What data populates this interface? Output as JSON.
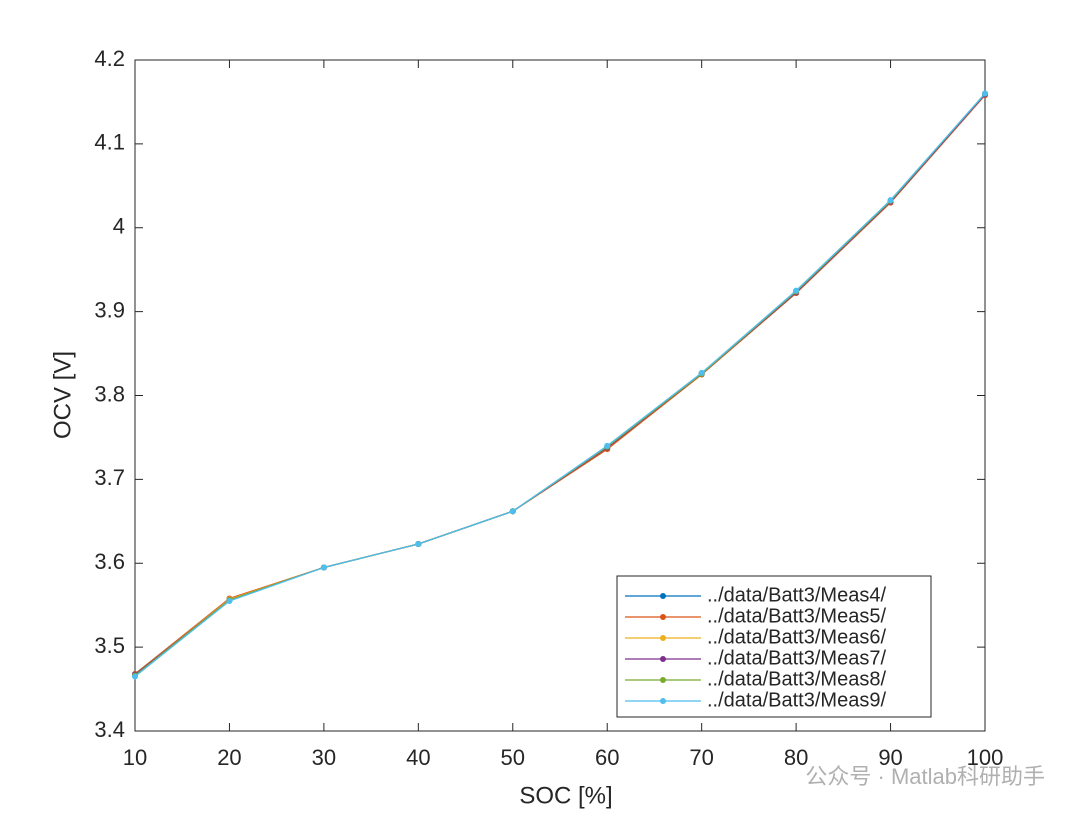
{
  "chart_data": {
    "type": "line",
    "xlabel": "SOC [%]",
    "ylabel": "OCV [V]",
    "x": [
      10,
      20,
      30,
      40,
      50,
      60,
      70,
      80,
      90,
      100
    ],
    "series": [
      {
        "name": "../data/Batt3/Meas4/",
        "color": "#0072BD",
        "values": [
          3.468,
          3.557,
          3.595,
          3.623,
          3.662,
          3.737,
          3.826,
          3.923,
          4.031,
          4.159
        ]
      },
      {
        "name": "../data/Batt3/Meas5/",
        "color": "#D95319",
        "values": [
          3.468,
          3.558,
          3.595,
          3.623,
          3.662,
          3.736,
          3.825,
          3.922,
          4.03,
          4.158
        ]
      },
      {
        "name": "../data/Batt3/Meas6/",
        "color": "#EDB120",
        "values": [
          3.467,
          3.557,
          3.595,
          3.623,
          3.662,
          3.738,
          3.826,
          3.923,
          4.031,
          4.159
        ]
      },
      {
        "name": "../data/Batt3/Meas7/",
        "color": "#7E2F8E",
        "values": [
          3.467,
          3.556,
          3.595,
          3.623,
          3.662,
          3.738,
          3.826,
          3.923,
          4.031,
          4.159
        ]
      },
      {
        "name": "../data/Batt3/Meas8/",
        "color": "#77AC30",
        "values": [
          3.466,
          3.556,
          3.595,
          3.623,
          3.662,
          3.739,
          3.826,
          3.924,
          4.032,
          4.16
        ]
      },
      {
        "name": "../data/Batt3/Meas9/",
        "color": "#4DBEEE",
        "values": [
          3.465,
          3.555,
          3.595,
          3.623,
          3.662,
          3.74,
          3.827,
          3.925,
          4.033,
          4.16
        ]
      }
    ],
    "xlim": [
      10,
      100
    ],
    "xticks": [
      10,
      20,
      30,
      40,
      50,
      60,
      70,
      80,
      90,
      100
    ],
    "ylim": [
      3.4,
      4.2
    ],
    "yticks": [
      3.4,
      3.5,
      3.6,
      3.7,
      3.8,
      3.9,
      4,
      4.1,
      4.2
    ],
    "grid": false,
    "legend": "lower right",
    "watermark": "公众号 · Matlab科研助手"
  }
}
